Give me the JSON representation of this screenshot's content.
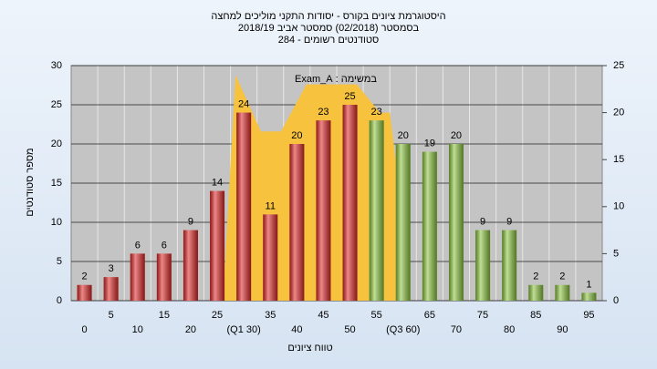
{
  "chart_data": {
    "type": "bar",
    "title": "היסטוגרמת ציונים בקורס - יסודות התקני מוליכים למחצה",
    "subtitle": "בסמסטר (02/2018)  סמסטר אביב 2018/19",
    "subtitle2": "סטודנטים רשומים - 284",
    "annotation": "במשימה : Exam_A",
    "ylabel": "מספר סטודנטים",
    "xlabel": "טווח ציונים",
    "categories": [
      "0",
      "5",
      "10",
      "15",
      "20",
      "25",
      "(Q1 30)",
      "35",
      "40",
      "45",
      "50",
      "55",
      "(Q3 60)",
      "65",
      "70",
      "75",
      "80",
      "85",
      "90",
      "95"
    ],
    "series": [
      {
        "values": [
          2,
          3,
          6,
          6,
          9,
          14,
          24,
          11,
          20,
          23,
          25,
          23,
          20,
          19,
          20,
          9,
          9,
          2,
          2,
          1
        ],
        "colors": [
          "#e02828",
          "#e02828",
          "#e02828",
          "#e02828",
          "#e02828",
          "#e02828",
          "#e02828",
          "#e02828",
          "#e02828",
          "#e02828",
          "#e02828",
          "#8cc63f",
          "#8cc63f",
          "#8cc63f",
          "#8cc63f",
          "#8cc63f",
          "#8cc63f",
          "#8cc63f",
          "#8cc63f",
          "#8cc63f"
        ]
      },
      {
        "type": "area",
        "axis": "y2",
        "color": "#f7c23e",
        "x": [
          27.5,
          30,
          35,
          39,
          44,
          54,
          58.5,
          60.5,
          63.5,
          63.5
        ],
        "values": [
          0,
          24,
          18,
          18,
          23,
          23,
          20,
          20,
          7,
          0
        ]
      }
    ],
    "xlim": [
      -2.5,
      102.5
    ],
    "ylim": [
      0,
      30
    ],
    "yticks": [
      0,
      5,
      10,
      15,
      20,
      25,
      30
    ],
    "y2lim": [
      0,
      25
    ],
    "y2ticks": [
      0,
      5,
      10,
      15,
      20,
      25
    ],
    "grid": true
  }
}
